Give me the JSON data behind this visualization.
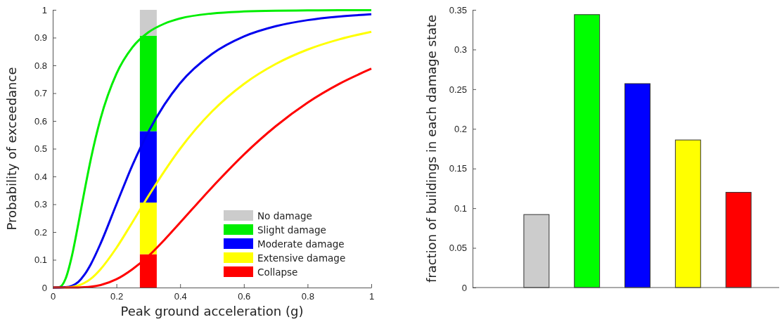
{
  "chart_data": [
    {
      "type": "line",
      "xlabel": "Peak ground acceleration (g)",
      "ylabel": "Probability of exceedance",
      "xlim": [
        0,
        1
      ],
      "ylim": [
        0,
        1
      ],
      "xticks": [
        0,
        0.2,
        0.4,
        0.6,
        0.8,
        1
      ],
      "yticks": [
        0,
        0.1,
        0.2,
        0.3,
        0.4,
        0.5,
        0.6,
        0.7,
        0.8,
        0.9,
        1
      ],
      "legend": "bottom right",
      "stacked": true,
      "series": [
        {
          "type": "line",
          "color": "#00ee00",
          "x": [
            0,
            0.02,
            0.04,
            0.06,
            0.08,
            0.1,
            0.12,
            0.15,
            0.2,
            0.25,
            0.3,
            0.35,
            0.4,
            0.5,
            0.6,
            0.7,
            0.8,
            0.9,
            1
          ],
          "values": [
            0,
            0.001,
            0.031,
            0.113,
            0.228,
            0.35,
            0.465,
            0.608,
            0.77,
            0.865,
            0.919,
            0.95,
            0.969,
            0.987,
            0.994,
            0.997,
            0.998,
            0.999,
            0.999
          ]
        },
        {
          "type": "line",
          "color": "#0000ee",
          "x": [
            0,
            0.02,
            0.04,
            0.06,
            0.08,
            0.1,
            0.12,
            0.15,
            0.2,
            0.25,
            0.3,
            0.35,
            0.4,
            0.5,
            0.6,
            0.7,
            0.8,
            0.9,
            1
          ],
          "values": [
            0,
            0,
            0.001,
            0.006,
            0.02,
            0.047,
            0.085,
            0.158,
            0.3,
            0.44,
            0.56,
            0.658,
            0.736,
            0.841,
            0.904,
            0.941,
            0.963,
            0.976,
            0.984
          ]
        },
        {
          "type": "line",
          "color": "#ffff00",
          "x": [
            0.04,
            0.06,
            0.08,
            0.1,
            0.12,
            0.15,
            0.2,
            0.25,
            0.3,
            0.35,
            0.4,
            0.5,
            0.6,
            0.7,
            0.8,
            0.9,
            1
          ],
          "values": [
            0,
            0.002,
            0.007,
            0.017,
            0.032,
            0.066,
            0.143,
            0.235,
            0.329,
            0.418,
            0.5,
            0.634,
            0.733,
            0.805,
            0.857,
            0.894,
            0.921
          ]
        },
        {
          "type": "line",
          "color": "#ff0000",
          "x": [
            0,
            0.02,
            0.04,
            0.06,
            0.08,
            0.1,
            0.12,
            0.15,
            0.2,
            0.25,
            0.3,
            0.35,
            0.4,
            0.5,
            0.6,
            0.7,
            0.8,
            0.9,
            1
          ],
          "values": [
            0,
            0,
            0,
            0,
            0,
            0.001,
            0.003,
            0.009,
            0.03,
            0.066,
            0.113,
            0.171,
            0.234,
            0.361,
            0.479,
            0.581,
            0.666,
            0.734,
            0.788
          ]
        },
        {
          "type": "bar",
          "name": "Collapse",
          "color": "#ff0000",
          "x": [
            0.3
          ],
          "values": [
            0.12
          ]
        },
        {
          "type": "bar",
          "name": "Extensive damage",
          "color": "#ffff00",
          "x": [
            0.3
          ],
          "values": [
            0.186
          ]
        },
        {
          "type": "bar",
          "name": "Moderate damage",
          "color": "#0000ff",
          "x": [
            0.3
          ],
          "values": [
            0.257
          ]
        },
        {
          "type": "bar",
          "name": "Slight damage",
          "color": "#00ee00",
          "x": [
            0.3
          ],
          "values": [
            0.344
          ]
        },
        {
          "type": "bar",
          "name": "No damage",
          "color": "#cccccc",
          "x": [
            0.3
          ],
          "values": [
            0.093
          ]
        }
      ]
    },
    {
      "type": "bar",
      "ylabel": "fraction of buildings in each damage state",
      "categories": [
        null,
        null,
        null,
        null,
        null
      ],
      "values": [
        0.092,
        0.344,
        0.257,
        0.186,
        0.12
      ],
      "colors": [
        "#cccccc",
        "#00ff00",
        "#0000ff",
        "#ffff00",
        "#ff0000"
      ],
      "ylim": [
        0,
        0.35
      ],
      "yticks": [
        0,
        0.05,
        0.1,
        0.15,
        0.2,
        0.25,
        0.3,
        0.35
      ],
      "tick_labels": "y"
    }
  ]
}
